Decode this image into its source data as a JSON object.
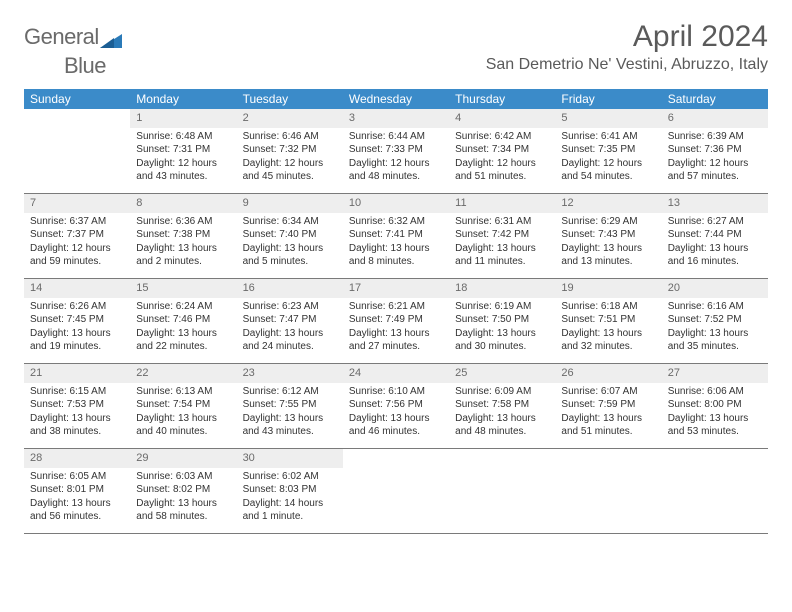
{
  "logo": {
    "text1": "General",
    "text2": "Blue"
  },
  "title": "April 2024",
  "location": "San Demetrio Ne' Vestini, Abruzzo, Italy",
  "colors": {
    "header_bg": "#3b8bc9",
    "header_text": "#ffffff",
    "daynum_bg": "#eeeeee",
    "border": "#7a7a7a",
    "text": "#333333",
    "title_text": "#5a5a5a",
    "logo_gray": "#6a6a6a",
    "logo_blue": "#2a7ab8"
  },
  "day_names": [
    "Sunday",
    "Monday",
    "Tuesday",
    "Wednesday",
    "Thursday",
    "Friday",
    "Saturday"
  ],
  "weeks": [
    [
      {
        "n": "",
        "sr": "",
        "ss": "",
        "dl": ""
      },
      {
        "n": "1",
        "sr": "Sunrise: 6:48 AM",
        "ss": "Sunset: 7:31 PM",
        "dl": "Daylight: 12 hours and 43 minutes."
      },
      {
        "n": "2",
        "sr": "Sunrise: 6:46 AM",
        "ss": "Sunset: 7:32 PM",
        "dl": "Daylight: 12 hours and 45 minutes."
      },
      {
        "n": "3",
        "sr": "Sunrise: 6:44 AM",
        "ss": "Sunset: 7:33 PM",
        "dl": "Daylight: 12 hours and 48 minutes."
      },
      {
        "n": "4",
        "sr": "Sunrise: 6:42 AM",
        "ss": "Sunset: 7:34 PM",
        "dl": "Daylight: 12 hours and 51 minutes."
      },
      {
        "n": "5",
        "sr": "Sunrise: 6:41 AM",
        "ss": "Sunset: 7:35 PM",
        "dl": "Daylight: 12 hours and 54 minutes."
      },
      {
        "n": "6",
        "sr": "Sunrise: 6:39 AM",
        "ss": "Sunset: 7:36 PM",
        "dl": "Daylight: 12 hours and 57 minutes."
      }
    ],
    [
      {
        "n": "7",
        "sr": "Sunrise: 6:37 AM",
        "ss": "Sunset: 7:37 PM",
        "dl": "Daylight: 12 hours and 59 minutes."
      },
      {
        "n": "8",
        "sr": "Sunrise: 6:36 AM",
        "ss": "Sunset: 7:38 PM",
        "dl": "Daylight: 13 hours and 2 minutes."
      },
      {
        "n": "9",
        "sr": "Sunrise: 6:34 AM",
        "ss": "Sunset: 7:40 PM",
        "dl": "Daylight: 13 hours and 5 minutes."
      },
      {
        "n": "10",
        "sr": "Sunrise: 6:32 AM",
        "ss": "Sunset: 7:41 PM",
        "dl": "Daylight: 13 hours and 8 minutes."
      },
      {
        "n": "11",
        "sr": "Sunrise: 6:31 AM",
        "ss": "Sunset: 7:42 PM",
        "dl": "Daylight: 13 hours and 11 minutes."
      },
      {
        "n": "12",
        "sr": "Sunrise: 6:29 AM",
        "ss": "Sunset: 7:43 PM",
        "dl": "Daylight: 13 hours and 13 minutes."
      },
      {
        "n": "13",
        "sr": "Sunrise: 6:27 AM",
        "ss": "Sunset: 7:44 PM",
        "dl": "Daylight: 13 hours and 16 minutes."
      }
    ],
    [
      {
        "n": "14",
        "sr": "Sunrise: 6:26 AM",
        "ss": "Sunset: 7:45 PM",
        "dl": "Daylight: 13 hours and 19 minutes."
      },
      {
        "n": "15",
        "sr": "Sunrise: 6:24 AM",
        "ss": "Sunset: 7:46 PM",
        "dl": "Daylight: 13 hours and 22 minutes."
      },
      {
        "n": "16",
        "sr": "Sunrise: 6:23 AM",
        "ss": "Sunset: 7:47 PM",
        "dl": "Daylight: 13 hours and 24 minutes."
      },
      {
        "n": "17",
        "sr": "Sunrise: 6:21 AM",
        "ss": "Sunset: 7:49 PM",
        "dl": "Daylight: 13 hours and 27 minutes."
      },
      {
        "n": "18",
        "sr": "Sunrise: 6:19 AM",
        "ss": "Sunset: 7:50 PM",
        "dl": "Daylight: 13 hours and 30 minutes."
      },
      {
        "n": "19",
        "sr": "Sunrise: 6:18 AM",
        "ss": "Sunset: 7:51 PM",
        "dl": "Daylight: 13 hours and 32 minutes."
      },
      {
        "n": "20",
        "sr": "Sunrise: 6:16 AM",
        "ss": "Sunset: 7:52 PM",
        "dl": "Daylight: 13 hours and 35 minutes."
      }
    ],
    [
      {
        "n": "21",
        "sr": "Sunrise: 6:15 AM",
        "ss": "Sunset: 7:53 PM",
        "dl": "Daylight: 13 hours and 38 minutes."
      },
      {
        "n": "22",
        "sr": "Sunrise: 6:13 AM",
        "ss": "Sunset: 7:54 PM",
        "dl": "Daylight: 13 hours and 40 minutes."
      },
      {
        "n": "23",
        "sr": "Sunrise: 6:12 AM",
        "ss": "Sunset: 7:55 PM",
        "dl": "Daylight: 13 hours and 43 minutes."
      },
      {
        "n": "24",
        "sr": "Sunrise: 6:10 AM",
        "ss": "Sunset: 7:56 PM",
        "dl": "Daylight: 13 hours and 46 minutes."
      },
      {
        "n": "25",
        "sr": "Sunrise: 6:09 AM",
        "ss": "Sunset: 7:58 PM",
        "dl": "Daylight: 13 hours and 48 minutes."
      },
      {
        "n": "26",
        "sr": "Sunrise: 6:07 AM",
        "ss": "Sunset: 7:59 PM",
        "dl": "Daylight: 13 hours and 51 minutes."
      },
      {
        "n": "27",
        "sr": "Sunrise: 6:06 AM",
        "ss": "Sunset: 8:00 PM",
        "dl": "Daylight: 13 hours and 53 minutes."
      }
    ],
    [
      {
        "n": "28",
        "sr": "Sunrise: 6:05 AM",
        "ss": "Sunset: 8:01 PM",
        "dl": "Daylight: 13 hours and 56 minutes."
      },
      {
        "n": "29",
        "sr": "Sunrise: 6:03 AM",
        "ss": "Sunset: 8:02 PM",
        "dl": "Daylight: 13 hours and 58 minutes."
      },
      {
        "n": "30",
        "sr": "Sunrise: 6:02 AM",
        "ss": "Sunset: 8:03 PM",
        "dl": "Daylight: 14 hours and 1 minute."
      },
      {
        "n": "",
        "sr": "",
        "ss": "",
        "dl": ""
      },
      {
        "n": "",
        "sr": "",
        "ss": "",
        "dl": ""
      },
      {
        "n": "",
        "sr": "",
        "ss": "",
        "dl": ""
      },
      {
        "n": "",
        "sr": "",
        "ss": "",
        "dl": ""
      }
    ]
  ]
}
